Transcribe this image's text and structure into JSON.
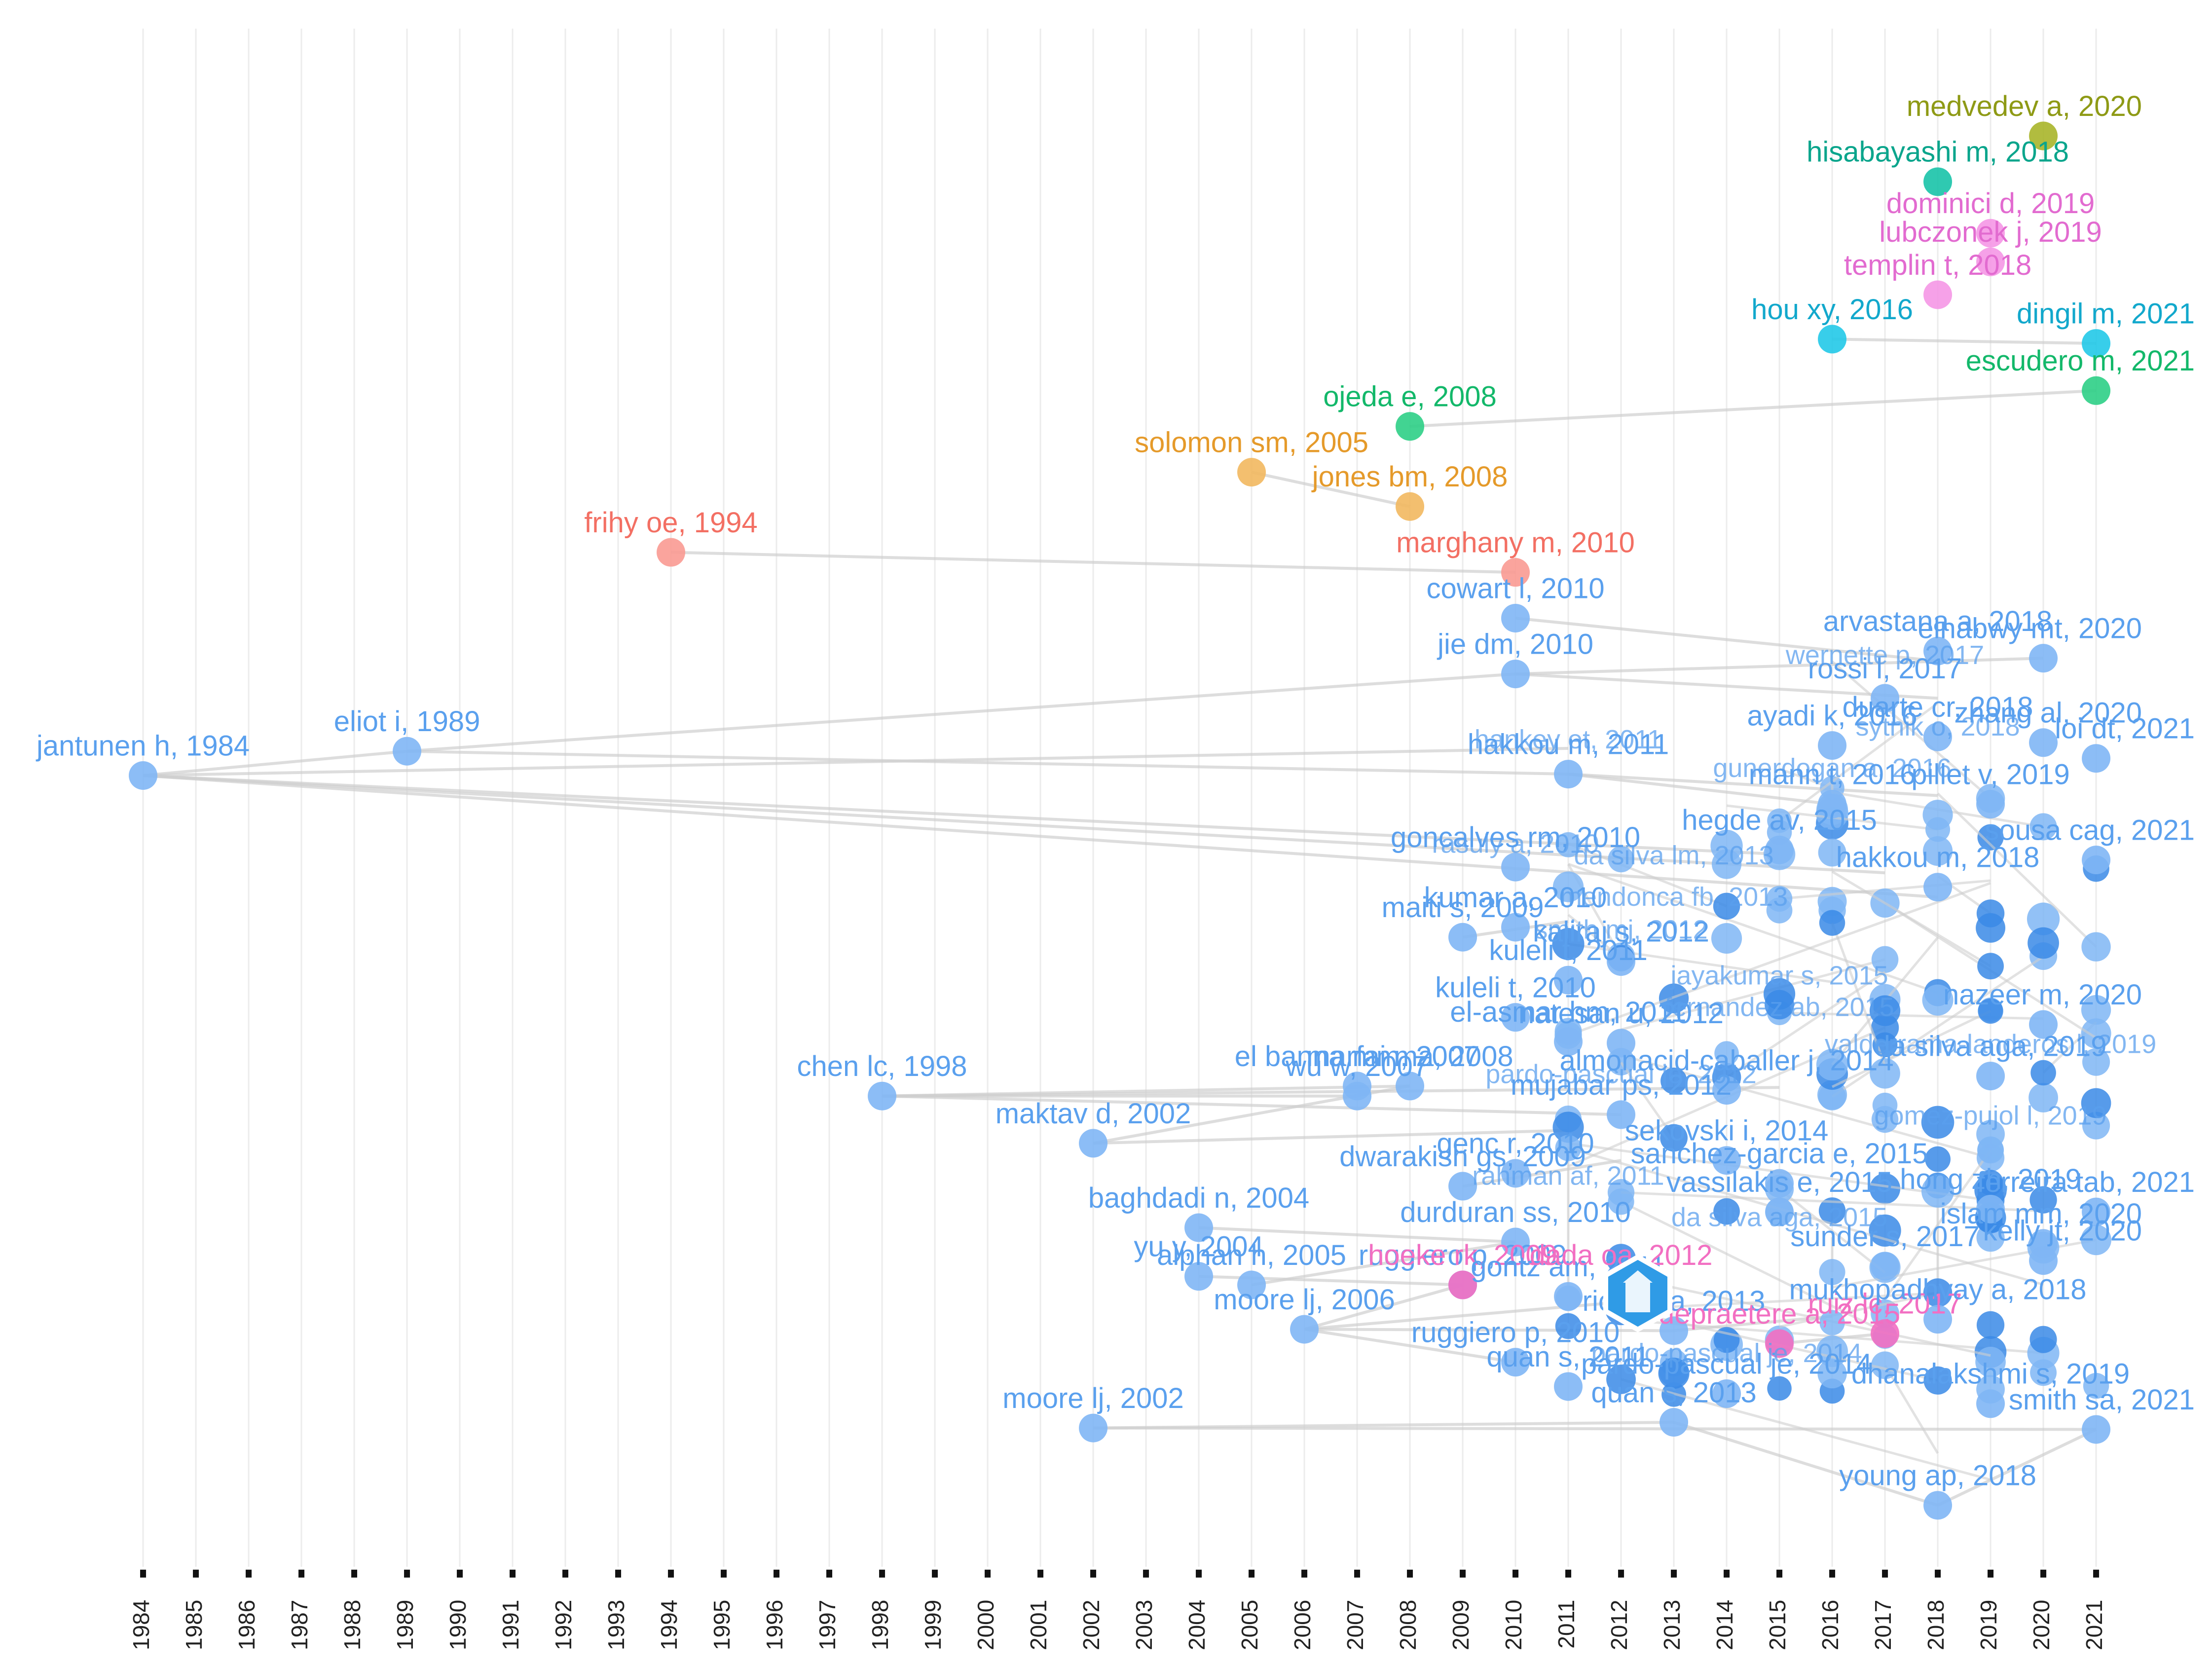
{
  "chart_data": {
    "type": "scatter",
    "title": "",
    "xlabel": "",
    "ylabel": "",
    "x_ticks": [
      1984,
      1985,
      1986,
      1987,
      1988,
      1989,
      1990,
      1991,
      1992,
      1993,
      1994,
      1995,
      1996,
      1997,
      1998,
      1999,
      2000,
      2001,
      2002,
      2003,
      2004,
      2005,
      2006,
      2007,
      2008,
      2009,
      2010,
      2011,
      2012,
      2013,
      2014,
      2015,
      2016,
      2017,
      2018,
      2019,
      2020,
      2021
    ],
    "xlim": [
      1984,
      2021
    ],
    "grid": true,
    "colors": {
      "blue": "#7fb6f5",
      "blue_dark": "#3a8ae6",
      "blue_label": "#5aa0ee",
      "salmon": "#fa9a92",
      "salmon_dark": "#f36f63",
      "orange": "#f2b85f",
      "orange_dark": "#e59a2a",
      "green": "#2ecf86",
      "green_dark": "#13b86a",
      "cyan": "#22c9e8",
      "cyan_dark": "#12a8cc",
      "teal": "#18c3a8",
      "teal_dark": "#0aa58c",
      "olive": "#a8b52a",
      "olive_dark": "#8e9a15",
      "pink": "#f597e6",
      "pink_dark": "#e26bd0",
      "magenta": "#f26fc2",
      "edge": "#cfcfcf"
    },
    "nodes": [
      {
        "label": "jantunen h, 1984",
        "year": 1984,
        "level": 542,
        "group": "blue"
      },
      {
        "label": "eliot i, 1989",
        "year": 1989,
        "level": 525,
        "group": "blue"
      },
      {
        "label": "frihy oe, 1994",
        "year": 1994,
        "level": 386,
        "group": "salmon"
      },
      {
        "label": "chen lc, 1998",
        "year": 1998,
        "level": 766,
        "group": "blue"
      },
      {
        "label": "maktav d, 2002",
        "year": 2002,
        "level": 799,
        "group": "blue"
      },
      {
        "label": "moore lj, 2002",
        "year": 2002,
        "level": 998,
        "group": "blue"
      },
      {
        "label": "baghdadi n, 2004",
        "year": 2004,
        "level": 858,
        "group": "blue"
      },
      {
        "label": "yu y, 2004",
        "year": 2004,
        "level": 892,
        "group": "blue"
      },
      {
        "label": "solomon sm, 2005",
        "year": 2005,
        "level": 330,
        "group": "orange"
      },
      {
        "label": "alphan h, 2005",
        "year": 2005,
        "level": 898,
        "group": "blue"
      },
      {
        "label": "moore lj, 2006",
        "year": 2006,
        "level": 929,
        "group": "blue"
      },
      {
        "label": "wu w, 2007",
        "year": 2007,
        "level": 766,
        "group": "blue"
      },
      {
        "label": "el banna mm, 2007",
        "year": 2007,
        "level": 759,
        "group": "blue"
      },
      {
        "label": "ojeda e, 2008",
        "year": 2008,
        "level": 298,
        "group": "green"
      },
      {
        "label": "jones bm, 2008",
        "year": 2008,
        "level": 354,
        "group": "orange"
      },
      {
        "label": "marfai ma, 2008",
        "year": 2008,
        "level": 759,
        "group": "blue"
      },
      {
        "label": "maiti s, 2009",
        "year": 2009,
        "level": 655,
        "group": "blue"
      },
      {
        "label": "dwarakish gs, 2009",
        "year": 2009,
        "level": 829,
        "group": "blue"
      },
      {
        "label": "ruggiero p, 2009",
        "year": 2009,
        "level": 898,
        "group": "blue"
      },
      {
        "label": "hoeke rk, 2009",
        "year": 2009,
        "level": 898,
        "group": "magenta"
      },
      {
        "label": "marghany m, 2010",
        "year": 2010,
        "level": 400,
        "group": "salmon"
      },
      {
        "label": "cowart l, 2010",
        "year": 2010,
        "level": 432,
        "group": "blue"
      },
      {
        "label": "jie dm, 2010",
        "year": 2010,
        "level": 471,
        "group": "blue"
      },
      {
        "label": "goncalves rm, 2010",
        "year": 2010,
        "level": 606,
        "group": "blue"
      },
      {
        "label": "kumar a, 2010",
        "year": 2010,
        "level": 648,
        "group": "blue"
      },
      {
        "label": "kuleli t, 2010",
        "year": 2010,
        "level": 711,
        "group": "blue"
      },
      {
        "label": "genc r, 2010",
        "year": 2010,
        "level": 820,
        "group": "blue"
      },
      {
        "label": "durduran ss, 2010",
        "year": 2010,
        "level": 868,
        "group": "blue"
      },
      {
        "label": "ruggiero p, 2010",
        "year": 2010,
        "level": 952,
        "group": "blue"
      },
      {
        "label": "hakkou m, 2011",
        "year": 2011,
        "level": 541,
        "group": "blue"
      },
      {
        "label": "kuleli t, 2011",
        "year": 2011,
        "level": 685,
        "group": "blue"
      },
      {
        "label": "el-asmar hm, 2011",
        "year": 2011,
        "level": 728,
        "group": "blue"
      },
      {
        "label": "gontz am, 2011",
        "year": 2011,
        "level": 906,
        "group": "blue"
      },
      {
        "label": "quan s, 2011",
        "year": 2011,
        "level": 969,
        "group": "blue"
      },
      {
        "label": "kaliraj s, 2012",
        "year": 2012,
        "level": 672,
        "group": "blue"
      },
      {
        "label": "natesan u, 2012",
        "year": 2012,
        "level": 729,
        "group": "blue"
      },
      {
        "label": "mujabar ps, 2012",
        "year": 2012,
        "level": 779,
        "group": "blue"
      },
      {
        "label": "dada oa, 2012",
        "year": 2012,
        "level": 898,
        "group": "magenta"
      },
      {
        "label": "quan s, 2013",
        "year": 2013,
        "level": 994,
        "group": "blue"
      },
      {
        "label": "richter a, 2013",
        "year": 2013,
        "level": 930,
        "group": "blue"
      },
      {
        "label": "almonacid-caballer j, 2014",
        "year": 2014,
        "level": 762,
        "group": "blue"
      },
      {
        "label": "sekovski i, 2014",
        "year": 2014,
        "level": 811,
        "group": "blue"
      },
      {
        "label": "pardo-pascual je, 2014",
        "year": 2014,
        "level": 974,
        "group": "blue"
      },
      {
        "label": "hegde av, 2015",
        "year": 2015,
        "level": 594,
        "group": "blue"
      },
      {
        "label": "sanchez-garcia e, 2015",
        "year": 2015,
        "level": 827,
        "group": "blue"
      },
      {
        "label": "vassilakis e, 2015",
        "year": 2015,
        "level": 847,
        "group": "blue"
      },
      {
        "label": "sunder s, 2017",
        "year": 2017,
        "level": 885,
        "group": "blue"
      },
      {
        "label": "depraetere a, 2015",
        "year": 2015,
        "level": 939,
        "group": "magenta"
      },
      {
        "label": "hou xy, 2016",
        "year": 2016,
        "level": 237,
        "group": "cyan"
      },
      {
        "label": "ayadi k, 2016",
        "year": 2016,
        "level": 521,
        "group": "blue"
      },
      {
        "label": "mann t, 2016",
        "year": 2016,
        "level": 562,
        "group": "blue"
      },
      {
        "label": "rossi l, 2017",
        "year": 2017,
        "level": 488,
        "group": "blue"
      },
      {
        "label": "ruiz lc, 2017",
        "year": 2017,
        "level": 932,
        "group": "magenta"
      },
      {
        "label": "hisabayashi m, 2018",
        "year": 2018,
        "level": 127,
        "group": "teal"
      },
      {
        "label": "templin t, 2018",
        "year": 2018,
        "level": 206,
        "group": "pink"
      },
      {
        "label": "arvastana a, 2018",
        "year": 2018,
        "level": 455,
        "group": "blue"
      },
      {
        "label": "duarte cr, 2018",
        "year": 2018,
        "level": 515,
        "group": "blue"
      },
      {
        "label": "hakkou m, 2018",
        "year": 2018,
        "level": 620,
        "group": "blue"
      },
      {
        "label": "mukhopadhyay a, 2018",
        "year": 2018,
        "level": 922,
        "group": "blue"
      },
      {
        "label": "young ap, 2018",
        "year": 2018,
        "level": 1052,
        "group": "blue"
      },
      {
        "label": "dominici d, 2019",
        "year": 2019,
        "level": 163,
        "group": "pink"
      },
      {
        "label": "lubczonek j, 2019",
        "year": 2019,
        "level": 183,
        "group": "pink"
      },
      {
        "label": "pillet v, 2019",
        "year": 2019,
        "level": 562,
        "group": "blue"
      },
      {
        "label": "da silva aga, 2019",
        "year": 2019,
        "level": 752,
        "group": "blue"
      },
      {
        "label": "hong zh, 2019",
        "year": 2019,
        "level": 845,
        "group": "blue"
      },
      {
        "label": "dhanalakshmi s, 2019",
        "year": 2019,
        "level": 981,
        "group": "blue"
      },
      {
        "label": "medvedev a, 2020",
        "year": 2020,
        "level": 95,
        "group": "olive"
      },
      {
        "label": "elnabwy mt, 2020",
        "year": 2020,
        "level": 460,
        "group": "blue"
      },
      {
        "label": "zhang al, 2020",
        "year": 2020,
        "level": 519,
        "group": "blue"
      },
      {
        "label": "nazeer m, 2020",
        "year": 2020,
        "level": 716,
        "group": "blue"
      },
      {
        "label": "islam mm, 2020",
        "year": 2020,
        "level": 869,
        "group": "blue"
      },
      {
        "label": "kelly jt, 2020",
        "year": 2020,
        "level": 881,
        "group": "blue"
      },
      {
        "label": "dingil m, 2021",
        "year": 2021,
        "level": 240,
        "group": "cyan"
      },
      {
        "label": "escudero m, 2021",
        "year": 2021,
        "level": 273,
        "group": "green"
      },
      {
        "label": "loi dt, 2021",
        "year": 2021,
        "level": 530,
        "group": "blue"
      },
      {
        "label": "sousa cag, 2021",
        "year": 2021,
        "level": 601,
        "group": "blue"
      },
      {
        "label": "ferreira tab, 2021",
        "year": 2021,
        "level": 847,
        "group": "blue"
      },
      {
        "label": "smith sa, 2021",
        "year": 2021,
        "level": 999,
        "group": "blue"
      }
    ],
    "background_labels": [
      {
        "label": "hankey et, 2011",
        "year": 2011,
        "level": 523
      },
      {
        "label": "wernette p, 2017",
        "year": 2017,
        "level": 464
      },
      {
        "label": "gunerdogan a, 2016",
        "year": 2016,
        "level": 543
      },
      {
        "label": "rasuly a, 2010",
        "year": 2010,
        "level": 596
      },
      {
        "label": "da silva lm, 2013",
        "year": 2013,
        "level": 604
      },
      {
        "label": "mendonca fb, 2013",
        "year": 2013,
        "level": 633
      },
      {
        "label": "smith mj, 2012",
        "year": 2012,
        "level": 656
      },
      {
        "label": "jayakumar s, 2015",
        "year": 2015,
        "level": 688
      },
      {
        "label": "fernandez ab, 2015",
        "year": 2015,
        "level": 710
      },
      {
        "label": "pardo-pascual je, 2012",
        "year": 2012,
        "level": 757
      },
      {
        "label": "valderrama-landeros l, 2019",
        "year": 2019,
        "level": 736
      },
      {
        "label": "rahman af, 2011",
        "year": 2011,
        "level": 828
      },
      {
        "label": "da silva aga, 2015",
        "year": 2015,
        "level": 857
      },
      {
        "label": "sytnik o, 2018",
        "year": 2018,
        "level": 514
      },
      {
        "label": "pardo-pascual je, 2014",
        "year": 2014,
        "level": 952
      },
      {
        "label": "gomez-pujol l, 2019",
        "year": 2019,
        "level": 786
      }
    ],
    "edges": [
      [
        1984,
        542,
        1989,
        525
      ],
      [
        1984,
        542,
        2011,
        523
      ],
      [
        1984,
        542,
        2015,
        597
      ],
      [
        1984,
        542,
        2017,
        610
      ],
      [
        1984,
        542,
        2018,
        627
      ],
      [
        1989,
        525,
        2010,
        471
      ],
      [
        1989,
        525,
        2011,
        541
      ],
      [
        1994,
        386,
        2010,
        400
      ],
      [
        2005,
        330,
        2008,
        354
      ],
      [
        2008,
        298,
        2021,
        273
      ],
      [
        2016,
        237,
        2021,
        240
      ],
      [
        2010,
        432,
        2018,
        462
      ],
      [
        2010,
        471,
        2020,
        460
      ],
      [
        2010,
        471,
        2018,
        488
      ],
      [
        1998,
        766,
        2007,
        766
      ],
      [
        1998,
        766,
        2008,
        759
      ],
      [
        1998,
        766,
        2012,
        779
      ],
      [
        1998,
        766,
        2015,
        760
      ],
      [
        2002,
        799,
        2011,
        790
      ],
      [
        2002,
        799,
        2008,
        759
      ],
      [
        2002,
        998,
        2013,
        994
      ],
      [
        2002,
        998,
        2021,
        999
      ],
      [
        2006,
        929,
        2009,
        898
      ],
      [
        2006,
        929,
        2010,
        952
      ],
      [
        2006,
        929,
        2013,
        930
      ],
      [
        2006,
        929,
        2012,
        910
      ],
      [
        2004,
        858,
        2010,
        868
      ],
      [
        2004,
        892,
        2009,
        898
      ],
      [
        2005,
        898,
        2010,
        868
      ],
      [
        2009,
        655,
        2011,
        644
      ],
      [
        2009,
        829,
        2012,
        811
      ],
      [
        2011,
        541,
        2016,
        562
      ],
      [
        2011,
        541,
        2018,
        556
      ],
      [
        2013,
        994,
        2018,
        1052
      ],
      [
        2018,
        1052,
        2021,
        999
      ],
      [
        2015,
        939,
        2017,
        932
      ],
      [
        2013,
        930,
        2016,
        920
      ]
    ],
    "dense_cluster": {
      "x_years": [
        2010,
        2021
      ],
      "level_range": [
        430,
        1000
      ],
      "count": 135
    }
  }
}
